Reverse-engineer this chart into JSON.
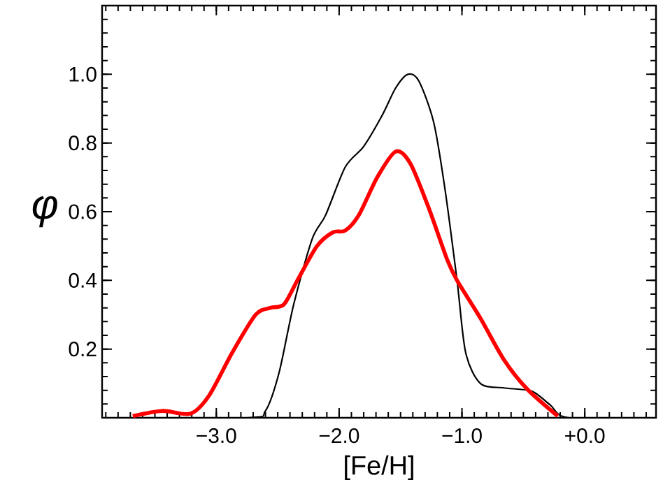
{
  "chart_data": {
    "type": "line",
    "xlabel": "[Fe/H]",
    "ylabel": "φ",
    "xlim": [
      -3.93,
      0.58
    ],
    "ylim": [
      0,
      1.2
    ],
    "xticks": [
      {
        "value": -3,
        "label": "−3.0"
      },
      {
        "value": -2,
        "label": "−2.0"
      },
      {
        "value": -1,
        "label": "−1.0"
      },
      {
        "value": 0,
        "label": "+0.0"
      }
    ],
    "yticks": [
      {
        "value": 0.2,
        "label": "0.2"
      },
      {
        "value": 0.4,
        "label": "0.4"
      },
      {
        "value": 0.6,
        "label": "0.6"
      },
      {
        "value": 0.8,
        "label": "0.8"
      },
      {
        "value": 1.0,
        "label": "1.0"
      }
    ],
    "grid": false,
    "marker": "none",
    "line_style": "solid",
    "series": [
      {
        "color": "#000000",
        "x": [
          -3.93,
          -2.75,
          -2.6,
          -2.49,
          -2.37,
          -2.22,
          -2.11,
          -1.95,
          -1.8,
          -1.65,
          -1.54,
          -1.44,
          -1.35,
          -1.23,
          -1.14,
          -1.04,
          -0.97,
          -0.85,
          -0.66,
          -0.43,
          -0.28,
          -0.13,
          0.57
        ],
        "values": [
          0,
          0,
          0.02,
          0.13,
          0.33,
          0.52,
          0.59,
          0.73,
          0.79,
          0.88,
          0.96,
          1.0,
          0.98,
          0.86,
          0.67,
          0.4,
          0.19,
          0.1,
          0.087,
          0.077,
          0.037,
          0,
          0
        ]
      },
      {
        "color": "#ff0000",
        "x": [
          -3.68,
          -3.44,
          -3.21,
          -3.06,
          -2.87,
          -2.68,
          -2.56,
          -2.45,
          -2.34,
          -2.18,
          -2.05,
          -1.95,
          -1.84,
          -1.69,
          -1.54,
          -1.42,
          -1.27,
          -1.12,
          -1.04,
          -0.85,
          -0.66,
          -0.47,
          -0.22
        ],
        "values": [
          0.005,
          0.02,
          0.012,
          0.064,
          0.19,
          0.3,
          0.32,
          0.33,
          0.4,
          0.5,
          0.54,
          0.545,
          0.59,
          0.7,
          0.775,
          0.74,
          0.61,
          0.46,
          0.4,
          0.29,
          0.17,
          0.084,
          0.005
        ]
      }
    ]
  }
}
